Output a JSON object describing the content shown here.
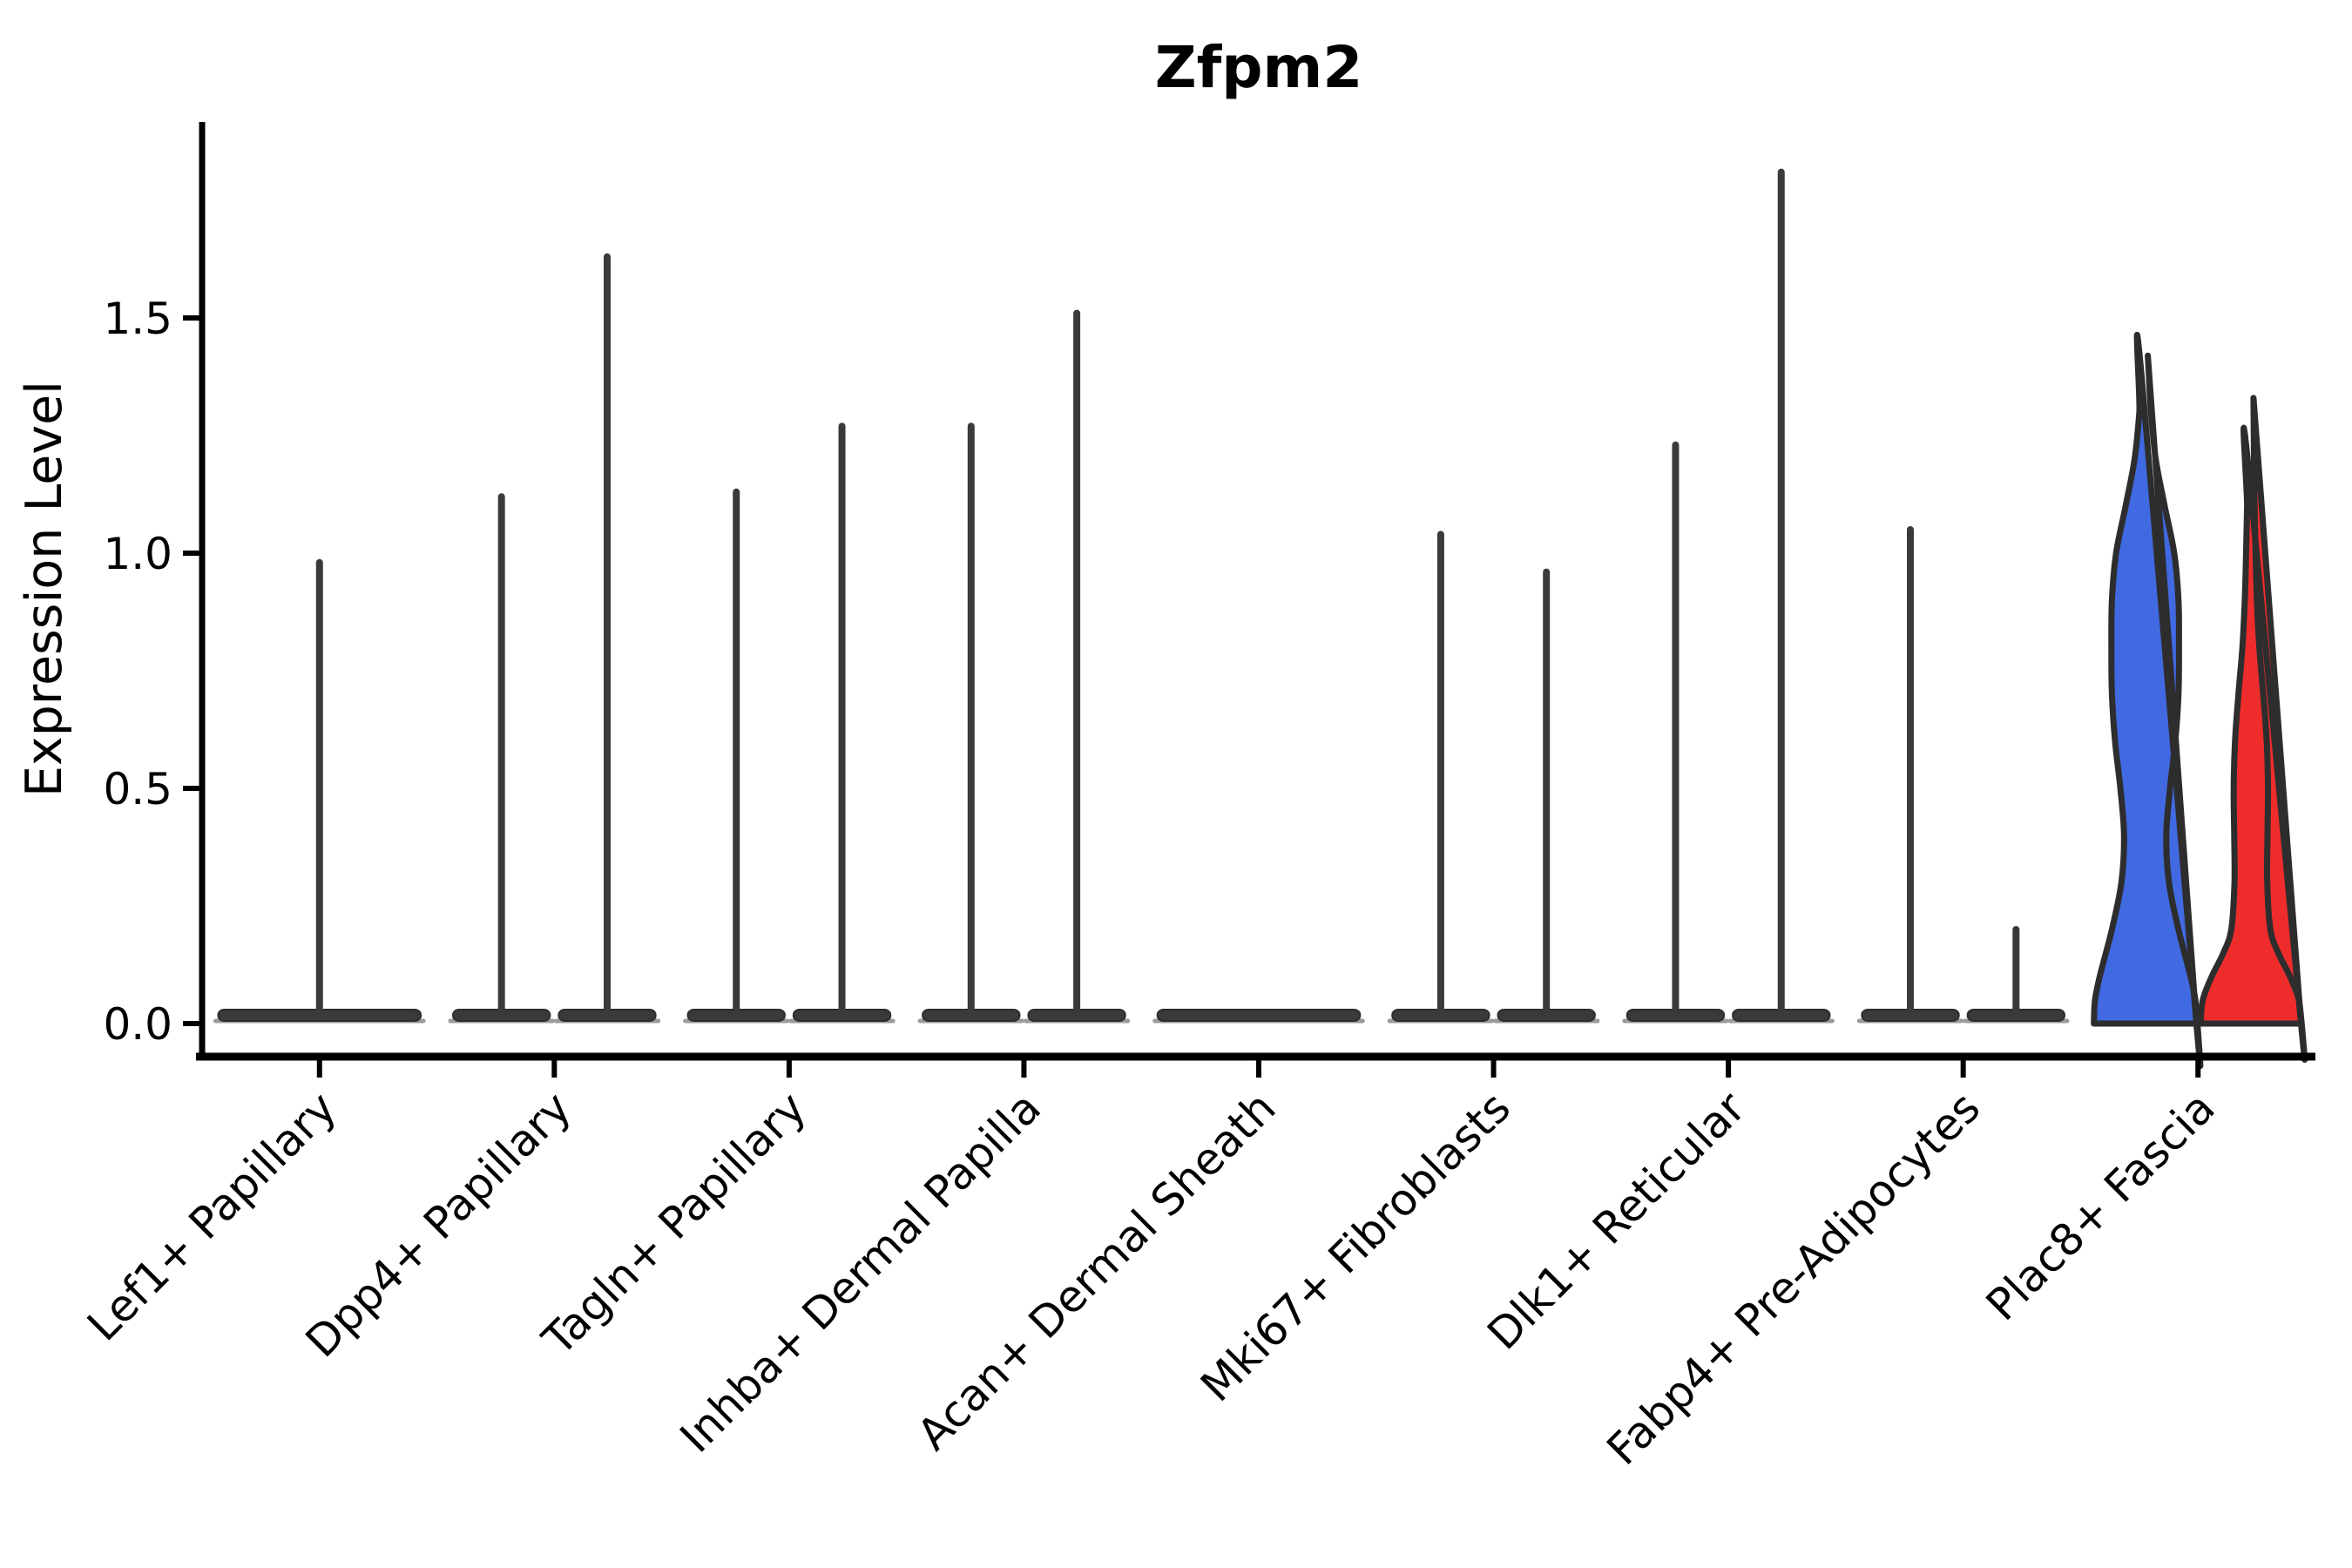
{
  "chart_data": {
    "type": "violin",
    "title": "Zfpm2",
    "xlabel": "",
    "ylabel": "Expression Level",
    "ytick_labels": [
      "0.0",
      "0.5",
      "1.0",
      "1.5"
    ],
    "ytick_values": [
      0.0,
      0.5,
      1.0,
      1.5
    ],
    "ylim": [
      -0.07,
      1.92
    ],
    "grid": "off",
    "legend": "none",
    "colors": {
      "blue_fill": "#4169E1",
      "red_fill": "#EE2C2C",
      "outline": "#2D2D2D",
      "violin_dark": "#3A3A3A",
      "base_fringe": "#9A9A9A"
    },
    "categories": [
      {
        "label": "Lef1+ Papillary",
        "violins": [
          {
            "position": "center",
            "max": 0.98,
            "style": "spike",
            "color": "dark"
          }
        ]
      },
      {
        "label": "Dpp4+ Papillary",
        "violins": [
          {
            "position": "left",
            "max": 1.12,
            "style": "spike",
            "color": "dark"
          },
          {
            "position": "right",
            "max": 1.63,
            "style": "spike",
            "color": "dark"
          }
        ]
      },
      {
        "label": "Tagln+ Papillary",
        "violins": [
          {
            "position": "left",
            "max": 1.13,
            "style": "spike",
            "color": "dark"
          },
          {
            "position": "right",
            "max": 1.27,
            "style": "spike",
            "color": "dark"
          }
        ]
      },
      {
        "label": "Inhba+ Dermal Papilla",
        "violins": [
          {
            "position": "left",
            "max": 1.27,
            "style": "spike",
            "color": "dark"
          },
          {
            "position": "right",
            "max": 1.51,
            "style": "spike",
            "color": "dark"
          }
        ]
      },
      {
        "label": "Acan+ Dermal Sheath",
        "violins": [
          {
            "position": "center",
            "max": 0.0,
            "style": "flat",
            "color": "dark"
          }
        ]
      },
      {
        "label": "Mki67+ Fibroblasts",
        "violins": [
          {
            "position": "left",
            "max": 1.04,
            "style": "spike",
            "color": "dark"
          },
          {
            "position": "right",
            "max": 0.96,
            "style": "spike",
            "color": "dark"
          }
        ]
      },
      {
        "label": "Dlk1+ Reticular",
        "violins": [
          {
            "position": "left",
            "max": 1.23,
            "style": "spike",
            "color": "dark"
          },
          {
            "position": "right",
            "max": 1.81,
            "style": "spike",
            "color": "dark"
          }
        ]
      },
      {
        "label": "Fabp4+ Pre-Adipocytes",
        "violins": [
          {
            "position": "left",
            "max": 1.05,
            "style": "spike",
            "color": "dark"
          },
          {
            "position": "right",
            "max": 0.2,
            "style": "spike",
            "color": "dark"
          }
        ]
      },
      {
        "label": "Plac8+ Fascia",
        "violins": [
          {
            "position": "left",
            "max": 1.42,
            "style": "shaped",
            "color": "blue_fill",
            "profile_ref": "blue"
          },
          {
            "position": "right",
            "max": 1.33,
            "style": "shaped",
            "color": "red_fill",
            "profile_ref": "red"
          }
        ]
      }
    ],
    "profiles": {
      "blue": [
        [
          0.0,
          0.97
        ],
        [
          0.05,
          0.95
        ],
        [
          0.1,
          0.86
        ],
        [
          0.2,
          0.63
        ],
        [
          0.3,
          0.45
        ],
        [
          0.4,
          0.4
        ],
        [
          0.5,
          0.47
        ],
        [
          0.6,
          0.57
        ],
        [
          0.7,
          0.63
        ],
        [
          0.8,
          0.64
        ],
        [
          0.9,
          0.63
        ],
        [
          1.0,
          0.55
        ],
        [
          1.1,
          0.37
        ],
        [
          1.2,
          0.2
        ],
        [
          1.3,
          0.11
        ],
        [
          1.38,
          0.07
        ],
        [
          1.42,
          0.05
        ]
      ],
      "red": [
        [
          0.0,
          0.95
        ],
        [
          0.05,
          0.91
        ],
        [
          0.1,
          0.74
        ],
        [
          0.15,
          0.52
        ],
        [
          0.2,
          0.37
        ],
        [
          0.3,
          0.31
        ],
        [
          0.4,
          0.315
        ],
        [
          0.5,
          0.325
        ],
        [
          0.6,
          0.3
        ],
        [
          0.7,
          0.235
        ],
        [
          0.8,
          0.16
        ],
        [
          0.9,
          0.115
        ],
        [
          1.0,
          0.09
        ],
        [
          1.1,
          0.07
        ],
        [
          1.2,
          0.06
        ],
        [
          1.33,
          0.05
        ]
      ]
    }
  }
}
